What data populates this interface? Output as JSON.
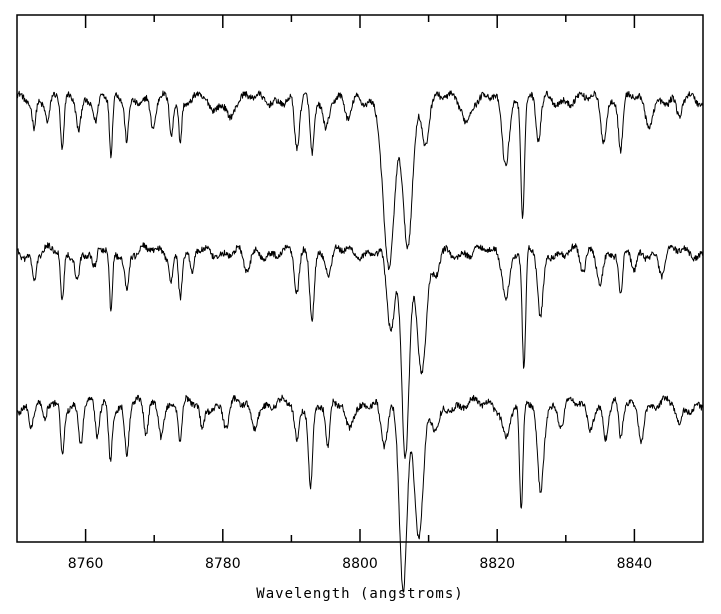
{
  "chart_data": {
    "type": "line",
    "title": "",
    "xlabel": "Wavelength (angstroms)",
    "ylabel": "",
    "xlim": [
      8750,
      8850
    ],
    "ylim": [
      0,
      1
    ],
    "x_ticks": [
      8760,
      8780,
      8800,
      8820,
      8840
    ],
    "x_tick_labels": [
      "8760",
      "8780",
      "8800",
      "8820",
      "8840"
    ],
    "minor_x_ticks": [
      8770,
      8790,
      8810,
      8830
    ],
    "grid": false,
    "legend": "none",
    "line_color": "#000000",
    "series": [
      {
        "offset": 0.84,
        "continuum": 0.84,
        "lines": [
          {
            "x": 8752.5,
            "d": 0.05,
            "w": 0.25
          },
          {
            "x": 8754.5,
            "d": 0.04,
            "w": 0.3
          },
          {
            "x": 8756.6,
            "d": 0.1,
            "w": 0.25
          },
          {
            "x": 8759.0,
            "d": 0.05,
            "w": 0.3
          },
          {
            "x": 8761.5,
            "d": 0.04,
            "w": 0.3
          },
          {
            "x": 8763.7,
            "d": 0.11,
            "w": 0.22
          },
          {
            "x": 8766.0,
            "d": 0.07,
            "w": 0.25
          },
          {
            "x": 8769.8,
            "d": 0.06,
            "w": 0.4
          },
          {
            "x": 8772.5,
            "d": 0.06,
            "w": 0.25
          },
          {
            "x": 8773.8,
            "d": 0.08,
            "w": 0.22
          },
          {
            "x": 8778.5,
            "d": 0.03,
            "w": 0.5
          },
          {
            "x": 8781.0,
            "d": 0.03,
            "w": 0.5
          },
          {
            "x": 8790.8,
            "d": 0.1,
            "w": 0.35
          },
          {
            "x": 8793.0,
            "d": 0.1,
            "w": 0.3
          },
          {
            "x": 8795.0,
            "d": 0.05,
            "w": 0.4
          },
          {
            "x": 8798.3,
            "d": 0.04,
            "w": 0.5
          },
          {
            "x": 8804.2,
            "d": 0.33,
            "w": 0.8
          },
          {
            "x": 8806.9,
            "d": 0.28,
            "w": 0.7
          },
          {
            "x": 8809.5,
            "d": 0.08,
            "w": 0.5
          },
          {
            "x": 8815.5,
            "d": 0.04,
            "w": 0.5
          },
          {
            "x": 8821.2,
            "d": 0.12,
            "w": 0.5
          },
          {
            "x": 8823.7,
            "d": 0.22,
            "w": 0.25
          },
          {
            "x": 8826.0,
            "d": 0.08,
            "w": 0.35
          },
          {
            "x": 8835.5,
            "d": 0.07,
            "w": 0.4
          },
          {
            "x": 8838.0,
            "d": 0.09,
            "w": 0.3
          },
          {
            "x": 8842.0,
            "d": 0.05,
            "w": 0.5
          },
          {
            "x": 8846.5,
            "d": 0.04,
            "w": 0.4
          }
        ]
      },
      {
        "offset": 0.55,
        "continuum": 0.55,
        "lines": [
          {
            "x": 8752.5,
            "d": 0.05,
            "w": 0.3
          },
          {
            "x": 8756.6,
            "d": 0.1,
            "w": 0.25
          },
          {
            "x": 8758.8,
            "d": 0.05,
            "w": 0.3
          },
          {
            "x": 8761.3,
            "d": 0.04,
            "w": 0.3
          },
          {
            "x": 8763.7,
            "d": 0.12,
            "w": 0.22
          },
          {
            "x": 8766.0,
            "d": 0.07,
            "w": 0.3
          },
          {
            "x": 8772.5,
            "d": 0.05,
            "w": 0.25
          },
          {
            "x": 8773.8,
            "d": 0.08,
            "w": 0.25
          },
          {
            "x": 8775.5,
            "d": 0.05,
            "w": 0.3
          },
          {
            "x": 8783.5,
            "d": 0.04,
            "w": 0.5
          },
          {
            "x": 8790.8,
            "d": 0.08,
            "w": 0.35
          },
          {
            "x": 8793.0,
            "d": 0.12,
            "w": 0.3
          },
          {
            "x": 8795.5,
            "d": 0.04,
            "w": 0.4
          },
          {
            "x": 8804.5,
            "d": 0.15,
            "w": 0.6
          },
          {
            "x": 8806.6,
            "d": 0.38,
            "w": 0.55
          },
          {
            "x": 8809.0,
            "d": 0.22,
            "w": 0.7
          },
          {
            "x": 8811.0,
            "d": 0.05,
            "w": 0.5
          },
          {
            "x": 8821.3,
            "d": 0.08,
            "w": 0.5
          },
          {
            "x": 8823.9,
            "d": 0.23,
            "w": 0.25
          },
          {
            "x": 8826.3,
            "d": 0.13,
            "w": 0.4
          },
          {
            "x": 8832.5,
            "d": 0.04,
            "w": 0.4
          },
          {
            "x": 8835.0,
            "d": 0.05,
            "w": 0.4
          },
          {
            "x": 8838.0,
            "d": 0.09,
            "w": 0.3
          },
          {
            "x": 8840.0,
            "d": 0.04,
            "w": 0.4
          },
          {
            "x": 8844.0,
            "d": 0.04,
            "w": 0.4
          }
        ]
      },
      {
        "offset": 0.26,
        "continuum": 0.26,
        "lines": [
          {
            "x": 8752.0,
            "d": 0.04,
            "w": 0.3
          },
          {
            "x": 8754.0,
            "d": 0.04,
            "w": 0.3
          },
          {
            "x": 8756.6,
            "d": 0.09,
            "w": 0.25
          },
          {
            "x": 8759.3,
            "d": 0.07,
            "w": 0.3
          },
          {
            "x": 8761.7,
            "d": 0.06,
            "w": 0.3
          },
          {
            "x": 8763.6,
            "d": 0.1,
            "w": 0.25
          },
          {
            "x": 8766.0,
            "d": 0.09,
            "w": 0.3
          },
          {
            "x": 8768.8,
            "d": 0.06,
            "w": 0.3
          },
          {
            "x": 8771.0,
            "d": 0.05,
            "w": 0.3
          },
          {
            "x": 8773.8,
            "d": 0.07,
            "w": 0.25
          },
          {
            "x": 8777.0,
            "d": 0.05,
            "w": 0.3
          },
          {
            "x": 8780.5,
            "d": 0.04,
            "w": 0.4
          },
          {
            "x": 8784.5,
            "d": 0.04,
            "w": 0.4
          },
          {
            "x": 8790.8,
            "d": 0.07,
            "w": 0.35
          },
          {
            "x": 8792.8,
            "d": 0.15,
            "w": 0.3
          },
          {
            "x": 8795.3,
            "d": 0.09,
            "w": 0.3
          },
          {
            "x": 8798.3,
            "d": 0.04,
            "w": 0.5
          },
          {
            "x": 8803.5,
            "d": 0.08,
            "w": 0.5
          },
          {
            "x": 8806.3,
            "d": 0.34,
            "w": 0.55
          },
          {
            "x": 8808.6,
            "d": 0.25,
            "w": 0.65
          },
          {
            "x": 8811.0,
            "d": 0.05,
            "w": 0.6
          },
          {
            "x": 8821.3,
            "d": 0.06,
            "w": 0.5
          },
          {
            "x": 8823.5,
            "d": 0.21,
            "w": 0.25
          },
          {
            "x": 8826.3,
            "d": 0.16,
            "w": 0.45
          },
          {
            "x": 8829.3,
            "d": 0.04,
            "w": 0.4
          },
          {
            "x": 8833.5,
            "d": 0.04,
            "w": 0.4
          },
          {
            "x": 8835.8,
            "d": 0.06,
            "w": 0.35
          },
          {
            "x": 8838.0,
            "d": 0.07,
            "w": 0.3
          },
          {
            "x": 8841.0,
            "d": 0.06,
            "w": 0.35
          },
          {
            "x": 8846.5,
            "d": 0.04,
            "w": 0.4
          }
        ]
      }
    ]
  }
}
